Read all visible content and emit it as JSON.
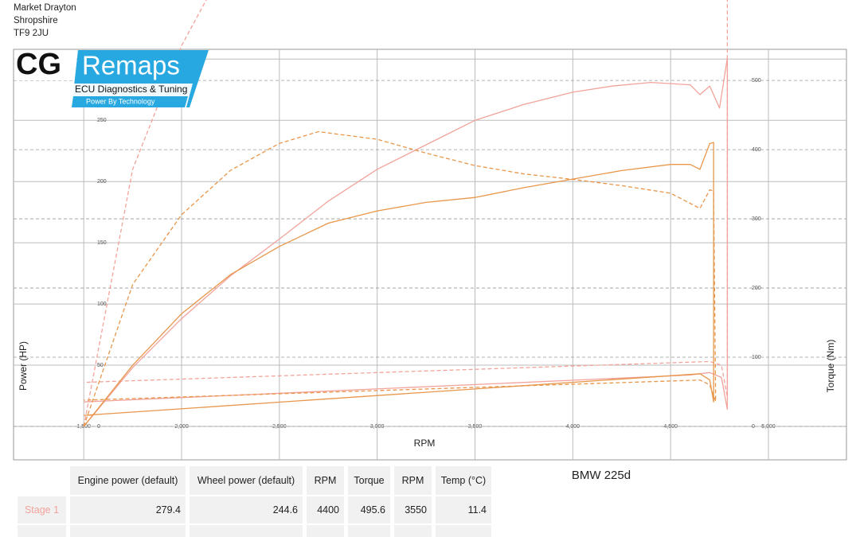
{
  "header": {
    "lines": [
      "Market Drayton",
      "Shropshire",
      "TF9 2JU"
    ]
  },
  "logo": {
    "brand": "CG",
    "name": "Remaps",
    "tagline": "ECU Diagnostics & Tuning",
    "slogan": "Power By Technology"
  },
  "chart_data": {
    "type": "line",
    "x_label": "RPM",
    "y_label": "Power (HP)",
    "y2_label": "Torque (Nm)",
    "xlim": [
      1141,
      5399
    ],
    "ylim": [
      0,
      308
    ],
    "y2lim": [
      0,
      545
    ],
    "xticks": [
      {
        "value": 1500,
        "label": "1,500"
      },
      {
        "value": 2000,
        "label": "2,000"
      },
      {
        "value": 2500,
        "label": "2,500"
      },
      {
        "value": 3000,
        "label": "3,000"
      },
      {
        "value": 3500,
        "label": "3,500"
      },
      {
        "value": 4000,
        "label": "4,000"
      },
      {
        "value": 4500,
        "label": "4,500"
      },
      {
        "value": 5000,
        "label": "5,000"
      }
    ],
    "yticks": [
      0,
      50,
      100,
      150,
      200,
      250,
      300
    ],
    "y2ticks": [
      0,
      100,
      200,
      300,
      400,
      500
    ],
    "grid": true,
    "series": [
      {
        "color": "#f2a39b",
        "dash": false,
        "x": [
          1500,
          1750,
          2000,
          2250,
          2500,
          2750,
          3000,
          3250,
          3500,
          3750,
          4000,
          4200,
          4400,
          4600,
          4650,
          4700,
          4750,
          4790,
          4790,
          4760,
          4700,
          4600,
          1500
        ],
        "values": [
          0,
          48,
          88,
          123,
          153,
          184,
          210,
          230,
          250,
          263,
          273,
          278,
          281,
          279,
          271,
          278,
          260,
          301,
          14,
          40,
          44,
          42,
          20
        ]
      },
      {
        "color": "#f2a39b",
        "dash": true,
        "x": [
          1500,
          1750,
          2000,
          2250,
          2500,
          2750,
          3000,
          3250,
          3500,
          3750,
          4000,
          4250,
          4500,
          4650,
          4700,
          4750,
          4790,
          4790,
          4760,
          4700,
          1500
        ],
        "values": [
          0,
          210,
          311,
          385,
          438,
          476,
          495,
          497,
          497,
          492,
          484,
          467,
          444,
          421,
          418,
          430,
          444,
          24,
          50,
          53,
          36
        ]
      },
      {
        "color": "#e8964a",
        "dash": false,
        "x": [
          1500,
          1750,
          2000,
          2250,
          2500,
          2750,
          3000,
          3250,
          3500,
          3750,
          4000,
          4250,
          4500,
          4600,
          4650,
          4700,
          4720,
          4720,
          4700,
          4650,
          1500
        ],
        "values": [
          0,
          50,
          92,
          124,
          147,
          166,
          176,
          183,
          187,
          195,
          202,
          209,
          214,
          214,
          210,
          231,
          232,
          20,
          38,
          43,
          9
        ]
      },
      {
        "color": "#e8964a",
        "dash": true,
        "x": [
          1500,
          1750,
          2000,
          2250,
          2500,
          2700,
          3000,
          3250,
          3500,
          3750,
          4000,
          4250,
          4500,
          4650,
          4700,
          4720,
          4730,
          4700,
          4650,
          1500
        ],
        "values": [
          0,
          205,
          306,
          370,
          409,
          426,
          415,
          395,
          377,
          365,
          357,
          348,
          337,
          315,
          342,
          340,
          36,
          60,
          67,
          38
        ],
        "axis": "y2"
      }
    ]
  },
  "vehicle": "BMW 225d",
  "table": {
    "columns": [
      "Engine power (default)",
      "Wheel power (default)",
      "RPM",
      "Torque",
      "RPM",
      "Temp (°C)"
    ],
    "rows": [
      {
        "label": "Stage 1",
        "cells": [
          "279.4",
          "244.6",
          "4400",
          "495.6",
          "3550",
          "11.4"
        ]
      }
    ]
  }
}
